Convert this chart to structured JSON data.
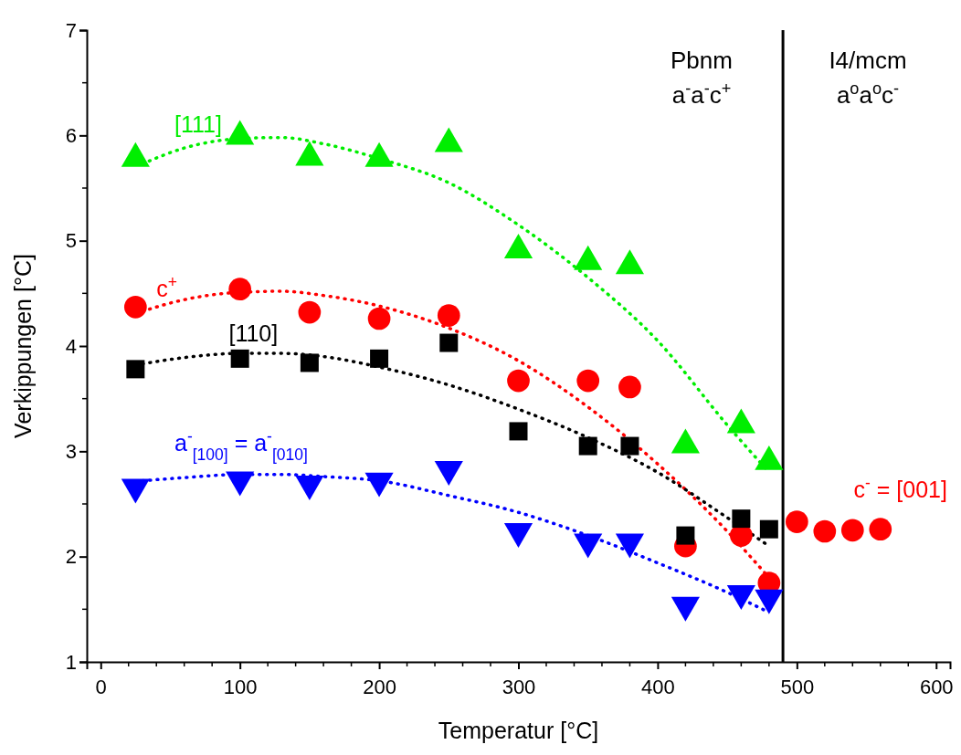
{
  "chart_data": {
    "type": "scatter",
    "xlabel": "Temperatur [°C]",
    "ylabel": "Verkippungen [°C]",
    "xlim": [
      -10,
      610
    ],
    "xticks": [
      0,
      100,
      200,
      300,
      400,
      500,
      600
    ],
    "ylim": [
      1,
      7
    ],
    "yticks": [
      1,
      2,
      3,
      4,
      5,
      6,
      7
    ],
    "grid": false,
    "series": [
      {
        "name": "[111]",
        "color": "#00ee00",
        "marker": "triangle",
        "x": [
          25,
          100,
          150,
          200,
          250,
          300,
          350,
          380,
          420,
          460,
          480
        ],
        "values": [
          5.78,
          5.99,
          5.79,
          5.78,
          5.92,
          4.91,
          4.8,
          4.76,
          3.06,
          3.25,
          2.9
        ]
      },
      {
        "name": "c$^{+}$",
        "color": "#ff0000",
        "marker": "circle",
        "x": [
          25,
          100,
          150,
          200,
          250,
          300,
          350,
          380,
          420,
          460,
          480
        ],
        "values": [
          4.37,
          4.54,
          4.32,
          4.26,
          4.29,
          3.67,
          3.67,
          3.61,
          2.1,
          2.2,
          1.75
        ]
      },
      {
        "name": "[110]",
        "color": "#000000",
        "marker": "square",
        "x": [
          25,
          100,
          150,
          200,
          250,
          300,
          350,
          380,
          420,
          460,
          480
        ],
        "values": [
          3.78,
          3.88,
          3.84,
          3.88,
          4.03,
          3.19,
          3.05,
          3.05,
          2.2,
          2.36,
          2.26
        ]
      },
      {
        "name": "a$^{-}$$_{[100]}$ = a$^{-}$$_{[010]}$",
        "color": "#0000ff",
        "marker": "triangle-down",
        "x": [
          25,
          100,
          150,
          200,
          250,
          300,
          350,
          380,
          420,
          460,
          480
        ],
        "values": [
          2.66,
          2.73,
          2.69,
          2.72,
          2.83,
          2.24,
          2.14,
          2.14,
          1.54,
          1.65,
          1.61
        ]
      },
      {
        "name": "c$^{-}$ = [001]",
        "color": "#ff0000",
        "marker": "circle",
        "x": [
          500,
          520,
          540,
          560
        ],
        "values": [
          2.33,
          2.24,
          2.25,
          2.26
        ]
      },
      {
        "type": "line",
        "color": "#00ee00",
        "line_style": "dotted",
        "x": [
          30,
          60,
          100,
          130,
          160,
          200,
          250,
          300,
          350,
          400,
          450,
          480
        ],
        "values": [
          5.73,
          5.88,
          5.97,
          5.98,
          5.92,
          5.78,
          5.55,
          5.15,
          4.65,
          4.05,
          3.25,
          2.8
        ]
      },
      {
        "type": "line",
        "color": "#ff0000",
        "line_style": "dotted",
        "x": [
          30,
          60,
          100,
          130,
          160,
          200,
          250,
          300,
          350,
          400,
          450,
          480
        ],
        "values": [
          4.33,
          4.44,
          4.51,
          4.52,
          4.48,
          4.38,
          4.17,
          3.86,
          3.42,
          2.88,
          2.24,
          1.8
        ]
      },
      {
        "type": "line",
        "color": "#000000",
        "line_style": "dotted",
        "x": [
          30,
          60,
          100,
          130,
          160,
          200,
          250,
          300,
          350,
          400,
          450,
          480
        ],
        "values": [
          3.83,
          3.89,
          3.93,
          3.93,
          3.9,
          3.8,
          3.63,
          3.4,
          3.13,
          2.8,
          2.37,
          2.1
        ]
      },
      {
        "type": "line",
        "color": "#0000ff",
        "line_style": "dotted",
        "x": [
          30,
          60,
          100,
          130,
          160,
          200,
          250,
          300,
          350,
          400,
          450,
          480
        ],
        "values": [
          2.72,
          2.75,
          2.78,
          2.78,
          2.76,
          2.72,
          2.58,
          2.42,
          2.2,
          1.94,
          1.66,
          1.47
        ]
      }
    ],
    "ref_lines": [
      {
        "axis": "x",
        "value": 490,
        "color": "#000000",
        "line_style": "solid"
      }
    ],
    "annotations": [
      "Pbnm",
      "a$^{-}$a$^{-}$c$^{+}$",
      "I4/mcm",
      "a$^{o}$a$^{o}$c$^{-}$"
    ]
  }
}
